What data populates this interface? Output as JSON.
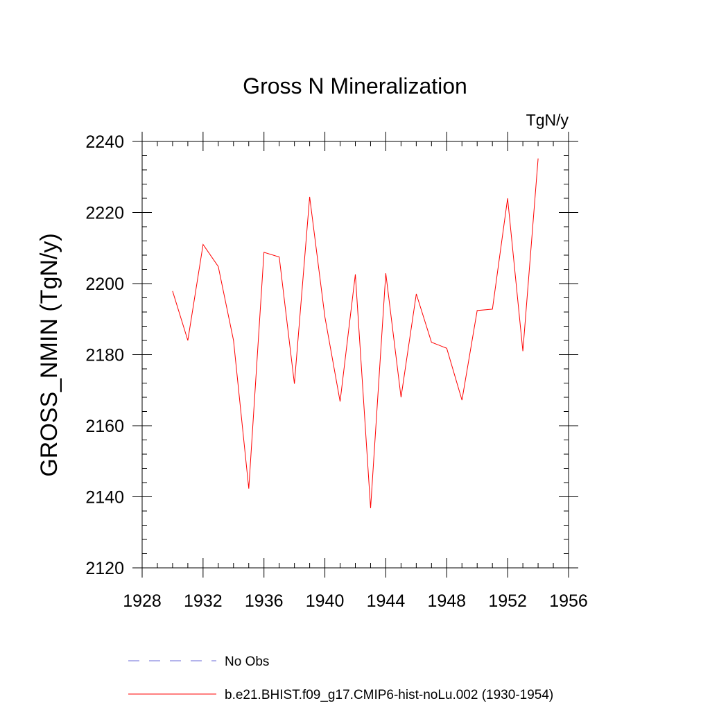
{
  "chart_data": {
    "type": "line",
    "title": "Gross N Mineralization",
    "units_label": "TgN/y",
    "xlabel": "",
    "ylabel": "GROSS_NMIN  (TgN/y)",
    "xlim": [
      1928,
      1956
    ],
    "ylim": [
      2120,
      2240
    ],
    "xticks": [
      1928,
      1932,
      1936,
      1940,
      1944,
      1948,
      1952,
      1956
    ],
    "yticks": [
      2120,
      2140,
      2160,
      2180,
      2200,
      2220,
      2240
    ],
    "grid": false,
    "legend_position": "bottom",
    "series": [
      {
        "name": "b.e21.BHIST.f09_g17.CMIP6-hist-noLu.002 (1930-1954)",
        "color": "#ff0000",
        "line_style": "solid",
        "x": [
          1930,
          1931,
          1932,
          1933,
          1934,
          1935,
          1936,
          1937,
          1938,
          1939,
          1940,
          1941,
          1942,
          1943,
          1944,
          1945,
          1946,
          1947,
          1948,
          1949,
          1950,
          1951,
          1952,
          1953,
          1954
        ],
        "y": [
          2197.9,
          2184.0,
          2211.0,
          2204.8,
          2184.0,
          2142.3,
          2208.8,
          2207.5,
          2171.8,
          2224.4,
          2190.6,
          2166.8,
          2202.6,
          2136.8,
          2202.9,
          2168.0,
          2197.1,
          2183.5,
          2181.8,
          2167.2,
          2192.4,
          2192.8,
          2224.0,
          2181.0,
          2235.2
        ]
      }
    ],
    "legend": [
      {
        "label": "No Obs",
        "color": "#6a6ad8",
        "line_style": "dashed"
      },
      {
        "label": "b.e21.BHIST.f09_g17.CMIP6-hist-noLu.002 (1930-1954)",
        "color": "#ff0000",
        "line_style": "solid"
      }
    ]
  }
}
